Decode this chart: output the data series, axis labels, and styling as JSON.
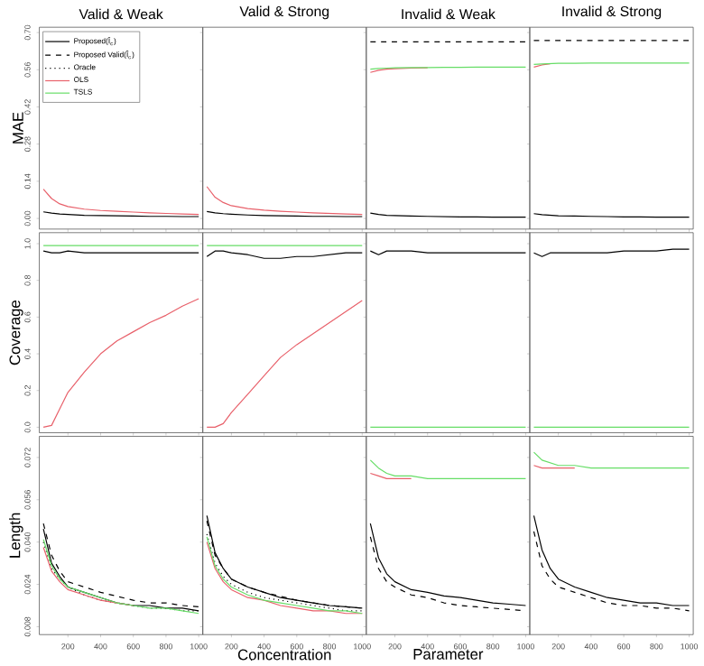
{
  "chart_data": [
    {
      "type": "line",
      "title": "Valid & Weak",
      "ylabel": "MAE",
      "legend": "top left",
      "tick_labels": "y",
      "x": [
        50,
        100,
        150,
        200,
        300,
        400,
        500,
        600,
        700,
        800,
        900,
        1000
      ],
      "xlim": [
        25,
        1025
      ],
      "xticks": [
        200,
        400,
        600,
        800,
        1000
      ],
      "ylim": [
        -0.04,
        0.72
      ],
      "yticks": [
        {
          "value": 0,
          "label": "0.00"
        },
        0.14,
        0.28,
        0.42,
        0.56,
        {
          "value": 0.7,
          "label": "0.70"
        }
      ],
      "series": [
        {
          "name": "Proposed(Î$_{c}$)",
          "color": "#000000",
          "line_style": "solid",
          "values": [
            0.025,
            0.02,
            0.017,
            0.015,
            0.012,
            0.011,
            0.01,
            0.009,
            0.008,
            0.008,
            0.007,
            0.007
          ]
        },
        {
          "name": "Proposed Valid(Î$_{c}$)",
          "color": "#000000",
          "line_style": "dashed",
          "values": [
            null,
            null,
            null,
            null,
            null,
            null,
            null,
            null,
            null,
            null,
            null,
            null
          ]
        },
        {
          "name": "Oracle",
          "color": "#000000",
          "line_style": "dotted",
          "values": [
            null,
            null,
            null,
            null,
            null,
            null,
            null,
            null,
            null,
            null,
            null,
            null
          ]
        },
        {
          "name": "OLS",
          "color": "#e8606a",
          "line_style": "solid",
          "values": [
            0.11,
            0.075,
            0.055,
            0.045,
            0.035,
            0.03,
            0.027,
            0.024,
            0.021,
            0.019,
            0.017,
            0.015
          ]
        },
        {
          "name": "TSLS",
          "color": "#66dd66",
          "line_style": "solid",
          "values": [
            null,
            null,
            null,
            null,
            null,
            null,
            null,
            null,
            null,
            null,
            null,
            null
          ]
        }
      ]
    },
    {
      "type": "line",
      "title": "Valid & Strong",
      "tick_labels": false,
      "x": [
        50,
        100,
        150,
        200,
        300,
        400,
        500,
        600,
        700,
        800,
        900,
        1000
      ],
      "xlim": [
        25,
        1025
      ],
      "xticks": [
        200,
        400,
        600,
        800,
        1000
      ],
      "ylim": [
        -0.04,
        0.72
      ],
      "yticks": [
        0,
        0.14,
        0.28,
        0.42,
        0.56,
        0.7
      ],
      "series": [
        {
          "color": "#000000",
          "line_style": "solid",
          "values": [
            0.026,
            0.021,
            0.018,
            0.016,
            0.013,
            0.011,
            0.01,
            0.009,
            0.008,
            0.008,
            0.007,
            0.007
          ]
        },
        {
          "color": "#e8606a",
          "line_style": "solid",
          "values": [
            0.12,
            0.08,
            0.06,
            0.048,
            0.037,
            0.031,
            0.027,
            0.024,
            0.021,
            0.019,
            0.017,
            0.015
          ]
        }
      ]
    },
    {
      "type": "line",
      "title": "Invalid & Weak",
      "tick_labels": false,
      "x": [
        50,
        100,
        150,
        200,
        300,
        400,
        500,
        600,
        700,
        800,
        900,
        1000
      ],
      "xlim": [
        25,
        1025
      ],
      "xticks": [
        200,
        400,
        600,
        800,
        1000
      ],
      "ylim": [
        -0.04,
        0.72
      ],
      "yticks": [
        0,
        0.14,
        0.28,
        0.42,
        0.56,
        0.7
      ],
      "series": [
        {
          "color": "#000000",
          "line_style": "solid",
          "values": [
            0.02,
            0.015,
            0.012,
            0.011,
            0.009,
            0.008,
            0.007,
            0.006,
            0.006,
            0.005,
            0.005,
            0.005
          ]
        },
        {
          "color": "#000000",
          "line_style": "dashed",
          "values": [
            0.665,
            0.665,
            0.665,
            0.665,
            0.665,
            0.665,
            0.665,
            0.665,
            0.665,
            0.665,
            0.665,
            0.665
          ]
        },
        {
          "color": "#e8606a",
          "line_style": "solid",
          "values": [
            0.55,
            0.558,
            0.562,
            0.564,
            0.566,
            0.567,
            null,
            null,
            null,
            null,
            null,
            null
          ]
        },
        {
          "color": "#66dd66",
          "line_style": "solid",
          "values": [
            0.562,
            0.565,
            0.566,
            0.567,
            0.568,
            0.568,
            0.569,
            0.569,
            0.57,
            0.57,
            0.57,
            0.57
          ]
        }
      ]
    },
    {
      "type": "line",
      "title": "Invalid & Strong",
      "tick_labels": false,
      "x": [
        50,
        100,
        150,
        200,
        300,
        400,
        500,
        600,
        700,
        800,
        900,
        1000
      ],
      "xlim": [
        25,
        1025
      ],
      "xticks": [
        200,
        400,
        600,
        800,
        1000
      ],
      "ylim": [
        -0.04,
        0.72
      ],
      "yticks": [
        0,
        0.14,
        0.28,
        0.42,
        0.56,
        0.7
      ],
      "series": [
        {
          "color": "#000000",
          "line_style": "solid",
          "values": [
            0.018,
            0.014,
            0.012,
            0.01,
            0.009,
            0.008,
            0.007,
            0.006,
            0.006,
            0.005,
            0.005,
            0.005
          ]
        },
        {
          "color": "#000000",
          "line_style": "dashed",
          "values": [
            0.67,
            0.67,
            0.67,
            0.67,
            0.67,
            0.67,
            0.67,
            0.67,
            0.67,
            0.67,
            0.67,
            0.67
          ]
        },
        {
          "color": "#e8606a",
          "line_style": "solid",
          "values": [
            0.57,
            0.578,
            0.582,
            null,
            null,
            null,
            null,
            null,
            null,
            null,
            null,
            null
          ]
        },
        {
          "color": "#66dd66",
          "line_style": "solid",
          "values": [
            0.58,
            0.582,
            0.583,
            0.584,
            0.584,
            0.585,
            0.585,
            0.585,
            0.585,
            0.585,
            0.585,
            0.585
          ]
        }
      ]
    },
    {
      "type": "line",
      "ylabel": "Coverage",
      "tick_labels": "y",
      "x": [
        50,
        100,
        150,
        200,
        300,
        400,
        500,
        600,
        700,
        800,
        900,
        1000
      ],
      "xlim": [
        25,
        1025
      ],
      "xticks": [
        200,
        400,
        600,
        800,
        1000
      ],
      "ylim": [
        -0.03,
        1.06
      ],
      "yticks": [
        {
          "value": 0,
          "label": "0.0"
        },
        0.2,
        0.4,
        0.6,
        0.8,
        {
          "value": 1,
          "label": "1.0"
        }
      ],
      "series": [
        {
          "color": "#000000",
          "line_style": "solid",
          "values": [
            0.96,
            0.95,
            0.95,
            0.96,
            0.95,
            0.95,
            0.95,
            0.95,
            0.95,
            0.95,
            0.95,
            0.95
          ]
        },
        {
          "color": "#e8606a",
          "line_style": "solid",
          "values": [
            0,
            0.01,
            0.1,
            0.19,
            0.3,
            0.4,
            0.47,
            0.52,
            0.57,
            0.61,
            0.66,
            0.7
          ]
        },
        {
          "color": "#66dd66",
          "line_style": "solid",
          "values": [
            0.99,
            0.99,
            0.99,
            0.99,
            0.99,
            0.99,
            0.99,
            0.99,
            0.99,
            0.99,
            0.99,
            0.99
          ]
        }
      ]
    },
    {
      "type": "line",
      "tick_labels": false,
      "x": [
        50,
        100,
        150,
        200,
        300,
        400,
        500,
        600,
        700,
        800,
        900,
        1000
      ],
      "xlim": [
        25,
        1025
      ],
      "xticks": [
        200,
        400,
        600,
        800,
        1000
      ],
      "ylim": [
        -0.03,
        1.06
      ],
      "yticks": [
        0,
        0.2,
        0.4,
        0.6,
        0.8,
        1
      ],
      "series": [
        {
          "color": "#000000",
          "line_style": "solid",
          "values": [
            0.93,
            0.96,
            0.96,
            0.95,
            0.94,
            0.92,
            0.92,
            0.93,
            0.93,
            0.94,
            0.95,
            0.95
          ]
        },
        {
          "color": "#e8606a",
          "line_style": "solid",
          "values": [
            0,
            0,
            0.02,
            0.08,
            0.18,
            0.28,
            0.38,
            0.45,
            0.51,
            0.57,
            0.63,
            0.69
          ]
        },
        {
          "color": "#66dd66",
          "line_style": "solid",
          "values": [
            0.99,
            0.99,
            0.99,
            0.99,
            0.99,
            0.99,
            0.99,
            0.99,
            0.99,
            0.99,
            0.99,
            0.99
          ]
        }
      ]
    },
    {
      "type": "line",
      "tick_labels": false,
      "x": [
        50,
        100,
        150,
        200,
        300,
        400,
        500,
        600,
        700,
        800,
        900,
        1000
      ],
      "xlim": [
        25,
        1025
      ],
      "xticks": [
        200,
        400,
        600,
        800,
        1000
      ],
      "ylim": [
        -0.03,
        1.06
      ],
      "yticks": [
        0,
        0.2,
        0.4,
        0.6,
        0.8,
        1
      ],
      "series": [
        {
          "color": "#000000",
          "line_style": "solid",
          "values": [
            0.96,
            0.94,
            0.96,
            0.96,
            0.96,
            0.95,
            0.95,
            0.95,
            0.95,
            0.95,
            0.95,
            0.95
          ]
        },
        {
          "color": "#66dd66",
          "line_style": "solid",
          "values": [
            0,
            0,
            0,
            0,
            0,
            0,
            0,
            0,
            0,
            0,
            0,
            0
          ]
        }
      ]
    },
    {
      "type": "line",
      "tick_labels": false,
      "x": [
        50,
        100,
        150,
        200,
        300,
        400,
        500,
        600,
        700,
        800,
        900,
        1000
      ],
      "xlim": [
        25,
        1025
      ],
      "xticks": [
        200,
        400,
        600,
        800,
        1000
      ],
      "ylim": [
        -0.03,
        1.06
      ],
      "yticks": [
        0,
        0.2,
        0.4,
        0.6,
        0.8,
        1
      ],
      "series": [
        {
          "color": "#000000",
          "line_style": "solid",
          "values": [
            0.95,
            0.93,
            0.95,
            0.95,
            0.95,
            0.95,
            0.95,
            0.96,
            0.96,
            0.96,
            0.97,
            0.97
          ]
        },
        {
          "color": "#66dd66",
          "line_style": "solid",
          "values": [
            0,
            0,
            0,
            0,
            0,
            0,
            0,
            0,
            0,
            0,
            0,
            0
          ]
        }
      ]
    },
    {
      "type": "line",
      "ylabel": "Length",
      "x": [
        50,
        100,
        150,
        200,
        300,
        400,
        500,
        600,
        700,
        800,
        900,
        1000
      ],
      "xlim": [
        25,
        1025
      ],
      "xticks": [
        200,
        400,
        600,
        800,
        1000
      ],
      "ylim": [
        0.005,
        0.08
      ],
      "yticks": [
        0.008,
        0.024,
        {
          "value": 0.04,
          "label": "0.040"
        },
        0.056,
        0.072
      ],
      "series": [
        {
          "color": "#000000",
          "line_style": "solid",
          "values": [
            0.045,
            0.032,
            0.027,
            0.023,
            0.021,
            0.019,
            0.017,
            0.016,
            0.016,
            0.015,
            0.015,
            0.014
          ]
        },
        {
          "color": "#000000",
          "line_style": "dashed",
          "values": [
            0.047,
            0.035,
            0.029,
            0.025,
            0.023,
            0.021,
            0.0195,
            0.018,
            0.017,
            0.017,
            0.016,
            0.0155
          ]
        },
        {
          "color": "#000000",
          "line_style": "dotted",
          "values": [
            0.04,
            0.03,
            0.026,
            0.023,
            0.02,
            0.018,
            0.017,
            0.016,
            0.015,
            0.015,
            0.014,
            0.014
          ]
        },
        {
          "color": "#e8606a",
          "line_style": "solid",
          "values": [
            0.038,
            0.029,
            0.025,
            0.022,
            0.02,
            0.018,
            0.017,
            0.016,
            null,
            null,
            null,
            null
          ]
        },
        {
          "color": "#66dd66",
          "line_style": "solid",
          "values": [
            0.041,
            0.031,
            0.026,
            0.023,
            0.021,
            0.019,
            0.017,
            0.016,
            0.015,
            0.015,
            0.014,
            0.013
          ]
        }
      ]
    },
    {
      "type": "line",
      "xlabel": "Concentration",
      "tick_labels": "x",
      "x": [
        50,
        100,
        150,
        200,
        300,
        400,
        500,
        600,
        700,
        800,
        900,
        1000
      ],
      "xlim": [
        25,
        1025
      ],
      "xticks": [
        200,
        400,
        600,
        800,
        1000
      ],
      "ylim": [
        0.005,
        0.08
      ],
      "yticks": [
        0.008,
        0.024,
        0.04,
        0.056,
        0.072
      ],
      "series": [
        {
          "color": "#000000",
          "line_style": "solid",
          "values": [
            0.05,
            0.036,
            0.03,
            0.026,
            0.023,
            0.021,
            0.019,
            0.018,
            0.017,
            0.016,
            0.0155,
            0.015
          ]
        },
        {
          "color": "#000000",
          "line_style": "dashed",
          "values": [
            0.048,
            0.035,
            0.03,
            0.026,
            0.023,
            0.021,
            0.0195,
            0.018,
            0.017,
            0.016,
            0.0155,
            0.015
          ]
        },
        {
          "color": "#000000",
          "line_style": "dotted",
          "values": [
            0.043,
            0.032,
            0.027,
            0.024,
            0.021,
            0.019,
            0.018,
            0.017,
            0.016,
            0.015,
            0.014,
            0.014
          ]
        },
        {
          "color": "#e8606a",
          "line_style": "solid",
          "values": [
            0.04,
            0.03,
            0.025,
            0.022,
            0.019,
            0.018,
            0.016,
            0.015,
            0.014,
            0.014,
            0.013,
            0.013
          ]
        },
        {
          "color": "#66dd66",
          "line_style": "solid",
          "values": [
            0.042,
            0.031,
            0.026,
            0.023,
            0.02,
            0.018,
            0.017,
            0.016,
            0.015,
            0.014,
            0.014,
            0.013
          ]
        }
      ]
    },
    {
      "type": "line",
      "xlabel": "Parameter",
      "tick_labels": "x",
      "x": [
        50,
        100,
        150,
        200,
        300,
        400,
        500,
        600,
        700,
        800,
        900,
        1000
      ],
      "xlim": [
        25,
        1025
      ],
      "xticks": [
        200,
        400,
        600,
        800,
        1000
      ],
      "ylim": [
        0.005,
        0.08
      ],
      "yticks": [
        0.008,
        0.024,
        0.04,
        0.056,
        0.072
      ],
      "series": [
        {
          "color": "#000000",
          "line_style": "solid",
          "values": [
            0.047,
            0.034,
            0.028,
            0.025,
            0.022,
            0.021,
            0.0196,
            0.019,
            0.018,
            0.017,
            0.0165,
            0.016
          ]
        },
        {
          "color": "#000000",
          "line_style": "dashed",
          "values": [
            0.042,
            0.03,
            0.025,
            0.023,
            0.02,
            0.019,
            0.017,
            0.016,
            0.0155,
            0.015,
            0.0145,
            0.014
          ]
        },
        {
          "color": "#e8606a",
          "line_style": "solid",
          "values": [
            0.066,
            0.065,
            0.064,
            0.064,
            0.064,
            null,
            null,
            null,
            null,
            null,
            null,
            null
          ]
        },
        {
          "color": "#66dd66",
          "line_style": "solid",
          "values": [
            0.071,
            0.068,
            0.066,
            0.065,
            0.065,
            0.064,
            0.064,
            0.064,
            0.064,
            0.064,
            0.064,
            0.064
          ]
        }
      ]
    },
    {
      "type": "line",
      "tick_labels": "x",
      "x": [
        50,
        100,
        150,
        200,
        300,
        400,
        500,
        600,
        700,
        800,
        900,
        1000
      ],
      "xlim": [
        25,
        1025
      ],
      "xticks": [
        200,
        400,
        600,
        800,
        1000
      ],
      "ylim": [
        0.005,
        0.08
      ],
      "yticks": [
        0.008,
        0.024,
        0.04,
        0.056,
        0.072
      ],
      "series": [
        {
          "color": "#000000",
          "line_style": "solid",
          "values": [
            0.05,
            0.037,
            0.03,
            0.026,
            0.023,
            0.021,
            0.019,
            0.018,
            0.017,
            0.017,
            0.016,
            0.016
          ]
        },
        {
          "color": "#000000",
          "line_style": "dashed",
          "values": [
            0.044,
            0.031,
            0.026,
            0.023,
            0.021,
            0.019,
            0.017,
            0.016,
            0.016,
            0.015,
            0.015,
            0.014
          ]
        },
        {
          "color": "#e8606a",
          "line_style": "solid",
          "values": [
            0.069,
            0.068,
            0.068,
            0.068,
            0.068,
            null,
            null,
            null,
            null,
            null,
            null,
            null
          ]
        },
        {
          "color": "#66dd66",
          "line_style": "solid",
          "values": [
            0.074,
            0.071,
            0.07,
            0.069,
            0.069,
            0.068,
            0.068,
            0.068,
            0.068,
            0.068,
            0.068,
            0.068
          ]
        }
      ]
    }
  ]
}
